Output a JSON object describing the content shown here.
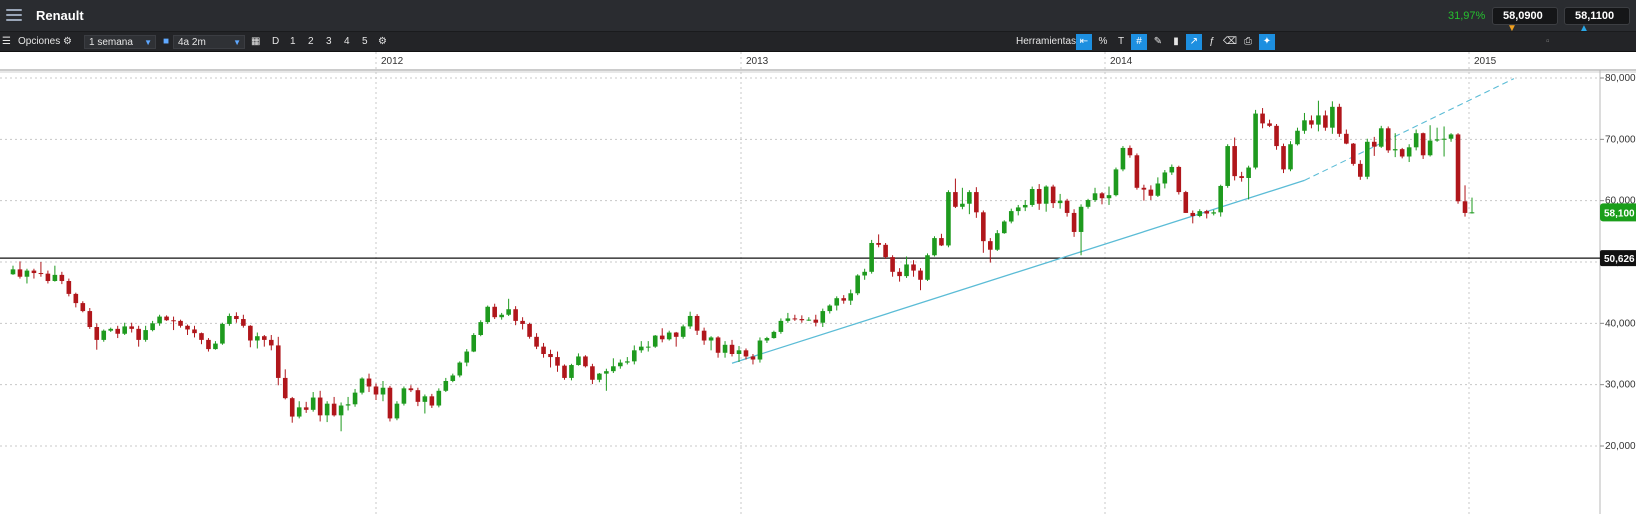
{
  "header": {
    "title": "Renault",
    "change_pct": "31,97%",
    "bid": "58,0900",
    "ask": "58,1100",
    "icons": [
      "menu-icon"
    ]
  },
  "toolbar": {
    "options_label": "Opciones",
    "interval": "1 semana",
    "range": "4a 2m",
    "periods": [
      "D",
      "1",
      "2",
      "3",
      "4",
      "5"
    ],
    "tools_label": "Herramientas",
    "percent_label": "%"
  },
  "colors": {
    "up": "#1e9a1e",
    "down": "#b0161b",
    "trend": "#5bbcd6",
    "price_badge": "#1a9e1a"
  },
  "chart_data": {
    "type": "candlestick",
    "title": "",
    "xlabel": "",
    "ylabel": "",
    "x_ticks": [
      "2012",
      "2013",
      "2014",
      "2015"
    ],
    "y_ticks": [
      "80,000",
      "70,000",
      "60,000",
      "50,000",
      "40,000",
      "30,000",
      "20,000"
    ],
    "ylim": [
      12,
      82
    ],
    "grid": true,
    "current_price": "58,100",
    "reference_level": "50,626",
    "trendline": {
      "start": [
        "2012-12-23",
        33.5
      ],
      "end": [
        "2014-07-20",
        63.3
      ],
      "extended_to": [
        "2015-02-15",
        79.9
      ]
    },
    "date_start": "2011-01-02",
    "step_days": 7,
    "candles": [
      [
        48.0,
        49.4,
        47.9,
        48.8
      ],
      [
        48.8,
        50.1,
        47.3,
        47.6
      ],
      [
        47.6,
        48.9,
        46.5,
        48.6
      ],
      [
        48.6,
        48.9,
        47.3,
        48.2
      ],
      [
        48.2,
        50.0,
        47.6,
        48.1
      ],
      [
        48.1,
        48.6,
        46.5,
        46.9
      ],
      [
        46.9,
        49.4,
        46.8,
        47.9
      ],
      [
        47.9,
        48.4,
        46.4,
        46.9
      ],
      [
        46.9,
        47.3,
        44.4,
        44.8
      ],
      [
        44.8,
        45.0,
        42.6,
        43.3
      ],
      [
        43.3,
        43.6,
        41.8,
        42.0
      ],
      [
        42.0,
        42.5,
        39.1,
        39.4
      ],
      [
        39.4,
        40.0,
        35.7,
        37.3
      ],
      [
        37.3,
        39.0,
        37.0,
        38.8
      ],
      [
        38.8,
        39.3,
        38.6,
        39.1
      ],
      [
        39.1,
        39.6,
        37.6,
        38.3
      ],
      [
        38.3,
        40.1,
        38.1,
        39.5
      ],
      [
        39.5,
        40.1,
        38.5,
        39.1
      ],
      [
        39.1,
        39.6,
        36.2,
        37.3
      ],
      [
        37.3,
        39.6,
        37.0,
        38.9
      ],
      [
        38.9,
        40.4,
        38.7,
        40.0
      ],
      [
        40.0,
        41.4,
        39.6,
        41.1
      ],
      [
        41.1,
        41.3,
        40.4,
        40.5
      ],
      [
        40.5,
        41.1,
        38.9,
        40.4
      ],
      [
        40.4,
        40.6,
        39.3,
        39.6
      ],
      [
        39.6,
        39.8,
        38.1,
        39.0
      ],
      [
        39.0,
        39.6,
        37.7,
        38.4
      ],
      [
        38.4,
        38.5,
        36.6,
        37.3
      ],
      [
        37.3,
        37.6,
        35.4,
        35.8
      ],
      [
        35.8,
        37.1,
        35.7,
        36.7
      ],
      [
        36.7,
        40.1,
        36.5,
        39.9
      ],
      [
        39.9,
        41.6,
        39.6,
        41.2
      ],
      [
        41.2,
        41.8,
        40.1,
        40.7
      ],
      [
        40.7,
        41.4,
        39.3,
        39.6
      ],
      [
        39.6,
        39.7,
        36.1,
        37.2
      ],
      [
        37.2,
        38.5,
        35.9,
        37.9
      ],
      [
        37.9,
        38.1,
        36.2,
        37.3
      ],
      [
        37.3,
        38.1,
        35.6,
        36.4
      ],
      [
        36.4,
        37.8,
        29.9,
        31.1
      ],
      [
        31.1,
        32.5,
        27.6,
        27.8
      ],
      [
        27.8,
        28.0,
        23.8,
        24.8
      ],
      [
        24.8,
        27.3,
        24.5,
        26.3
      ],
      [
        26.3,
        27.2,
        25.4,
        25.9
      ],
      [
        25.9,
        28.8,
        25.6,
        27.9
      ],
      [
        27.9,
        29.0,
        24.0,
        25.0
      ],
      [
        25.0,
        27.3,
        23.9,
        26.9
      ],
      [
        26.9,
        28.0,
        24.8,
        25.0
      ],
      [
        25.0,
        27.1,
        22.4,
        26.6
      ],
      [
        26.6,
        28.0,
        25.8,
        26.8
      ],
      [
        26.8,
        29.3,
        26.4,
        28.7
      ],
      [
        28.7,
        31.2,
        28.4,
        31.0
      ],
      [
        31.0,
        31.8,
        28.8,
        29.7
      ],
      [
        29.7,
        30.2,
        27.5,
        28.4
      ],
      [
        28.4,
        30.6,
        27.3,
        29.5
      ],
      [
        29.5,
        29.8,
        24.0,
        24.5
      ],
      [
        24.5,
        27.3,
        24.2,
        26.9
      ],
      [
        26.9,
        29.7,
        26.6,
        29.4
      ],
      [
        29.4,
        29.9,
        28.8,
        29.1
      ],
      [
        29.1,
        29.5,
        26.5,
        27.2
      ],
      [
        27.2,
        28.4,
        25.3,
        28.1
      ],
      [
        28.1,
        28.5,
        26.2,
        26.6
      ],
      [
        26.6,
        29.4,
        26.3,
        29.0
      ],
      [
        29.0,
        31.1,
        28.8,
        30.6
      ],
      [
        30.6,
        31.8,
        30.4,
        31.5
      ],
      [
        31.5,
        33.8,
        31.2,
        33.6
      ],
      [
        33.6,
        35.8,
        33.0,
        35.4
      ],
      [
        35.4,
        38.4,
        35.3,
        38.1
      ],
      [
        38.1,
        40.5,
        37.9,
        40.2
      ],
      [
        40.2,
        42.9,
        39.9,
        42.7
      ],
      [
        42.7,
        43.2,
        40.7,
        41.0
      ],
      [
        41.0,
        41.7,
        40.6,
        41.4
      ],
      [
        41.4,
        44.0,
        41.2,
        42.3
      ],
      [
        42.3,
        42.8,
        39.7,
        40.4
      ],
      [
        40.4,
        41.0,
        39.0,
        39.9
      ],
      [
        39.9,
        40.1,
        37.5,
        37.8
      ],
      [
        37.8,
        38.4,
        35.8,
        36.2
      ],
      [
        36.2,
        36.8,
        34.4,
        35.0
      ],
      [
        35.0,
        35.7,
        32.8,
        34.5
      ],
      [
        34.5,
        35.4,
        32.1,
        33.1
      ],
      [
        33.1,
        33.3,
        30.8,
        31.1
      ],
      [
        31.1,
        33.4,
        30.7,
        33.2
      ],
      [
        33.2,
        35.1,
        33.1,
        34.6
      ],
      [
        34.6,
        34.8,
        32.8,
        33.0
      ],
      [
        33.0,
        33.4,
        30.1,
        30.8
      ],
      [
        30.8,
        31.9,
        30.4,
        31.8
      ],
      [
        31.8,
        32.6,
        29.0,
        32.2
      ],
      [
        32.2,
        34.3,
        31.9,
        33.0
      ],
      [
        33.0,
        34.1,
        32.6,
        33.6
      ],
      [
        33.6,
        34.5,
        33.3,
        33.8
      ],
      [
        33.8,
        36.4,
        33.3,
        35.6
      ],
      [
        35.6,
        37.1,
        35.2,
        36.2
      ],
      [
        36.2,
        37.1,
        35.4,
        36.2
      ],
      [
        36.2,
        38.1,
        36.0,
        38.0
      ],
      [
        38.0,
        39.2,
        36.9,
        37.4
      ],
      [
        37.4,
        38.8,
        37.2,
        38.5
      ],
      [
        38.5,
        38.6,
        36.2,
        37.8
      ],
      [
        37.8,
        39.8,
        37.5,
        39.5
      ],
      [
        39.5,
        41.9,
        39.1,
        41.2
      ],
      [
        41.2,
        41.5,
        38.1,
        38.8
      ],
      [
        38.8,
        39.3,
        36.5,
        37.2
      ],
      [
        37.2,
        37.9,
        35.6,
        37.7
      ],
      [
        37.7,
        37.9,
        34.4,
        35.2
      ],
      [
        35.2,
        37.1,
        34.4,
        36.5
      ],
      [
        36.5,
        37.3,
        34.6,
        35.0
      ],
      [
        35.0,
        36.3,
        33.7,
        35.6
      ],
      [
        35.6,
        35.9,
        34.1,
        34.6
      ],
      [
        34.6,
        35.0,
        33.3,
        34.1
      ],
      [
        34.1,
        37.7,
        33.6,
        37.2
      ],
      [
        37.2,
        37.8,
        36.8,
        37.6
      ],
      [
        37.6,
        38.8,
        37.5,
        38.6
      ],
      [
        38.6,
        40.8,
        38.3,
        40.4
      ],
      [
        40.4,
        41.7,
        40.1,
        40.8
      ],
      [
        40.8,
        41.4,
        40.4,
        40.7
      ],
      [
        40.7,
        41.3,
        40.1,
        40.5
      ],
      [
        40.5,
        41.0,
        40.4,
        40.6
      ],
      [
        40.6,
        41.4,
        39.5,
        40.1
      ],
      [
        40.1,
        42.4,
        39.4,
        42.0
      ],
      [
        42.0,
        43.1,
        41.6,
        42.9
      ],
      [
        42.9,
        44.4,
        42.1,
        44.1
      ],
      [
        44.1,
        44.6,
        43.2,
        43.7
      ],
      [
        43.7,
        45.5,
        43.0,
        44.9
      ],
      [
        44.9,
        48.0,
        44.6,
        47.8
      ],
      [
        47.8,
        48.9,
        47.1,
        48.4
      ],
      [
        48.4,
        53.6,
        48.1,
        53.1
      ],
      [
        53.1,
        54.5,
        52.4,
        52.8
      ],
      [
        52.8,
        53.1,
        50.5,
        50.8
      ],
      [
        50.8,
        51.1,
        47.6,
        48.4
      ],
      [
        48.4,
        49.0,
        46.8,
        47.7
      ],
      [
        47.7,
        50.9,
        47.4,
        49.6
      ],
      [
        49.6,
        50.3,
        47.6,
        48.6
      ],
      [
        48.6,
        49.0,
        45.4,
        47.1
      ],
      [
        47.1,
        51.4,
        46.9,
        51.1
      ],
      [
        51.1,
        54.2,
        50.9,
        53.9
      ],
      [
        53.9,
        54.6,
        52.6,
        52.7
      ],
      [
        52.7,
        61.7,
        52.4,
        61.4
      ],
      [
        61.4,
        63.6,
        58.8,
        59.0
      ],
      [
        59.0,
        62.1,
        58.6,
        59.5
      ],
      [
        59.5,
        61.7,
        57.8,
        61.4
      ],
      [
        61.4,
        62.2,
        57.2,
        58.1
      ],
      [
        58.1,
        58.4,
        51.5,
        53.4
      ],
      [
        53.4,
        53.9,
        49.9,
        52.0
      ],
      [
        52.0,
        55.2,
        51.8,
        54.7
      ],
      [
        54.7,
        56.8,
        54.6,
        56.6
      ],
      [
        56.6,
        58.7,
        56.3,
        58.3
      ],
      [
        58.3,
        59.3,
        57.6,
        58.9
      ],
      [
        58.9,
        60.1,
        58.3,
        59.3
      ],
      [
        59.3,
        62.3,
        59.0,
        61.9
      ],
      [
        61.9,
        62.7,
        58.5,
        59.5
      ],
      [
        59.5,
        62.5,
        58.2,
        62.3
      ],
      [
        62.3,
        62.6,
        58.8,
        59.6
      ],
      [
        59.6,
        61.1,
        58.7,
        60.0
      ],
      [
        60.0,
        60.3,
        57.4,
        58.0
      ],
      [
        58.0,
        58.6,
        54.1,
        54.9
      ],
      [
        54.9,
        59.4,
        51.1,
        59.0
      ],
      [
        59.0,
        60.3,
        58.7,
        60.1
      ],
      [
        60.1,
        62.1,
        59.8,
        61.2
      ],
      [
        61.2,
        61.4,
        59.4,
        60.4
      ],
      [
        60.4,
        62.3,
        59.3,
        60.9
      ],
      [
        60.9,
        65.4,
        60.7,
        65.1
      ],
      [
        65.1,
        68.9,
        64.8,
        68.6
      ],
      [
        68.6,
        69.0,
        67.0,
        67.4
      ],
      [
        67.4,
        67.7,
        61.8,
        62.1
      ],
      [
        62.1,
        62.6,
        60.0,
        61.8
      ],
      [
        61.8,
        62.5,
        60.1,
        60.8
      ],
      [
        60.8,
        63.8,
        60.6,
        62.8
      ],
      [
        62.8,
        65.0,
        62.0,
        64.6
      ],
      [
        64.6,
        65.9,
        64.2,
        65.5
      ],
      [
        65.5,
        65.7,
        61.0,
        61.4
      ],
      [
        61.4,
        61.6,
        58.0,
        58.0
      ],
      [
        58.0,
        58.4,
        56.3,
        57.5
      ],
      [
        57.5,
        58.6,
        57.3,
        58.3
      ],
      [
        58.3,
        58.5,
        57.1,
        57.9
      ],
      [
        57.9,
        58.5,
        57.6,
        58.1
      ],
      [
        58.1,
        62.6,
        57.4,
        62.4
      ],
      [
        62.4,
        69.2,
        62.1,
        68.9
      ],
      [
        68.9,
        70.3,
        63.3,
        64.0
      ],
      [
        64.0,
        64.7,
        63.1,
        63.7
      ],
      [
        63.7,
        65.7,
        60.2,
        65.4
      ],
      [
        65.4,
        74.8,
        65.1,
        74.2
      ],
      [
        74.2,
        75.1,
        71.8,
        72.6
      ],
      [
        72.6,
        73.2,
        72.0,
        72.2
      ],
      [
        72.2,
        72.5,
        68.3,
        68.9
      ],
      [
        68.9,
        69.3,
        64.5,
        65.1
      ],
      [
        65.1,
        69.7,
        64.8,
        69.2
      ],
      [
        69.2,
        71.9,
        69.0,
        71.4
      ],
      [
        71.4,
        74.3,
        70.9,
        73.1
      ],
      [
        73.1,
        73.9,
        71.8,
        72.4
      ],
      [
        72.4,
        76.3,
        71.3,
        73.9
      ],
      [
        73.9,
        74.7,
        71.4,
        71.9
      ],
      [
        71.9,
        76.2,
        70.9,
        75.3
      ],
      [
        75.3,
        75.8,
        70.4,
        70.9
      ],
      [
        70.9,
        71.6,
        69.2,
        69.3
      ],
      [
        69.3,
        69.4,
        65.7,
        66.0
      ],
      [
        66.0,
        66.6,
        63.4,
        63.9
      ],
      [
        63.9,
        70.1,
        63.5,
        69.6
      ],
      [
        69.6,
        70.4,
        67.3,
        68.8
      ],
      [
        68.8,
        72.2,
        68.6,
        71.8
      ],
      [
        71.8,
        72.1,
        67.8,
        68.2
      ],
      [
        68.2,
        71.0,
        67.1,
        68.4
      ],
      [
        68.4,
        68.6,
        66.9,
        67.2
      ],
      [
        67.2,
        69.2,
        66.3,
        68.7
      ],
      [
        68.7,
        71.6,
        68.2,
        71.0
      ],
      [
        71.0,
        71.1,
        66.8,
        67.4
      ],
      [
        67.4,
        72.3,
        67.2,
        69.8
      ],
      [
        69.8,
        71.9,
        69.6,
        70.0
      ],
      [
        70.0,
        72.1,
        67.2,
        70.1
      ],
      [
        70.1,
        71.0,
        69.6,
        70.8
      ],
      [
        70.8,
        71.0,
        59.5,
        59.9
      ],
      [
        59.9,
        62.5,
        57.4,
        58.0
      ],
      [
        58.0,
        60.5,
        57.9,
        58.1
      ]
    ]
  }
}
